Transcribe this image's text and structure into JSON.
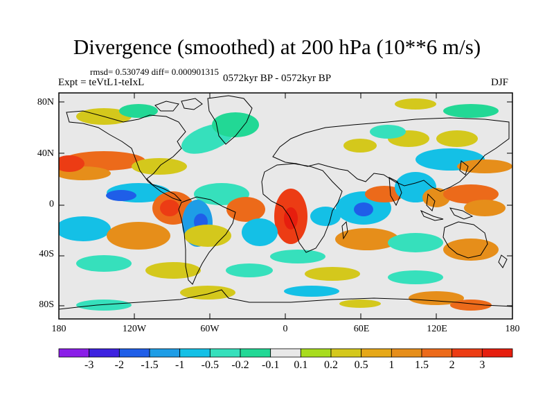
{
  "title": "Divergence (smoothed) at 200 hPa (10**6 m/s)",
  "stats_line": "rmsd= 0.530749 diff= 0.000901315",
  "experiment": "Expt = teVtL1-teIxL",
  "period": "0572kyr BP - 0572kyr BP",
  "season": "DJF",
  "y_axis_labels": [
    "80N",
    "40N",
    "0",
    "40S",
    "80S"
  ],
  "x_axis_labels": [
    "180",
    "120W",
    "60W",
    "0",
    "60E",
    "120E",
    "180"
  ],
  "colorbar": {
    "labels": [
      "-3",
      "-2",
      "-1.5",
      "-1",
      "-0.5",
      "-0.2",
      "-0.1",
      "0.1",
      "0.2",
      "0.5",
      "1",
      "1.5",
      "2",
      "3"
    ],
    "colors": [
      "#8a1ee8",
      "#3d22e0",
      "#1f5ee8",
      "#1e9de6",
      "#14c0e6",
      "#36e0bc",
      "#22d895",
      "#e8e8e8",
      "#a8dc1e",
      "#d4c81c",
      "#e6a818",
      "#e68e1a",
      "#ec6a1a",
      "#ec3c14",
      "#e61e0e"
    ]
  },
  "map": {
    "background": "#e8e8e8",
    "coast_color": "#000000"
  }
}
